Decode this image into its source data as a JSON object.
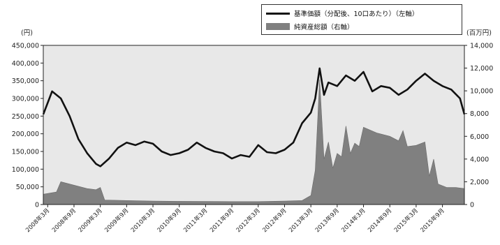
{
  "chart_data": {
    "type": "line",
    "legend": {
      "position": "top-right",
      "entries": [
        {
          "label": "基準価額（分配後、10口あたり）（左軸）",
          "kind": "line",
          "color": "#111111"
        },
        {
          "label": "純資産総額（右軸）",
          "kind": "area",
          "color": "#808080"
        }
      ]
    },
    "left_axis": {
      "unit": "(円)",
      "ylim": [
        0,
        450000
      ],
      "ticks": [
        "0",
        "50,000",
        "100,000",
        "150,000",
        "200,000",
        "250,000",
        "300,000",
        "350,000",
        "400,000",
        "450,000"
      ]
    },
    "right_axis": {
      "unit": "(百万円)",
      "ylim": [
        0,
        14000
      ],
      "ticks": [
        "0",
        "2,000",
        "4,000",
        "6,000",
        "8,000",
        "10,000",
        "12,000",
        "14,000"
      ]
    },
    "x_ticks": [
      {
        "label": "2008年3月",
        "date": "2008-03"
      },
      {
        "label": "2008年9月",
        "date": "2008-09"
      },
      {
        "label": "2009年3月",
        "date": "2009-03"
      },
      {
        "label": "2009年9月",
        "date": "2009-09"
      },
      {
        "label": "2010年3月",
        "date": "2010-03"
      },
      {
        "label": "2010年9月",
        "date": "2010-09"
      },
      {
        "label": "2011年3月",
        "date": "2011-03"
      },
      {
        "label": "2011年9月",
        "date": "2011-09"
      },
      {
        "label": "2012年3月",
        "date": "2012-03"
      },
      {
        "label": "2012年9月",
        "date": "2012-09"
      },
      {
        "label": "2013年3月",
        "date": "2013-03"
      },
      {
        "label": "2013年9月",
        "date": "2013-09"
      },
      {
        "label": "2014年3月",
        "date": "2014-03"
      },
      {
        "label": "2014年9月",
        "date": "2014-09"
      },
      {
        "label": "2015年3月",
        "date": "2015-03"
      },
      {
        "label": "2015年9月",
        "date": "2015-09"
      }
    ],
    "x_range": [
      "2008-02",
      "2016-02"
    ],
    "grid": false,
    "series": [
      {
        "name": "基準価額（分配後、10口あたり）（左軸）",
        "axis": "left",
        "type": "line",
        "points": [
          [
            "2008-02",
            255000
          ],
          [
            "2008-04",
            320000
          ],
          [
            "2008-06",
            300000
          ],
          [
            "2008-08",
            250000
          ],
          [
            "2008-10",
            185000
          ],
          [
            "2008-12",
            145000
          ],
          [
            "2009-02",
            115000
          ],
          [
            "2009-03",
            108000
          ],
          [
            "2009-05",
            130000
          ],
          [
            "2009-07",
            160000
          ],
          [
            "2009-09",
            175000
          ],
          [
            "2009-11",
            168000
          ],
          [
            "2010-01",
            178000
          ],
          [
            "2010-03",
            172000
          ],
          [
            "2010-05",
            150000
          ],
          [
            "2010-07",
            140000
          ],
          [
            "2010-09",
            145000
          ],
          [
            "2010-11",
            155000
          ],
          [
            "2011-01",
            175000
          ],
          [
            "2011-03",
            160000
          ],
          [
            "2011-05",
            150000
          ],
          [
            "2011-07",
            145000
          ],
          [
            "2011-09",
            130000
          ],
          [
            "2011-11",
            140000
          ],
          [
            "2012-01",
            135000
          ],
          [
            "2012-03",
            168000
          ],
          [
            "2012-05",
            148000
          ],
          [
            "2012-07",
            145000
          ],
          [
            "2012-09",
            155000
          ],
          [
            "2012-11",
            175000
          ],
          [
            "2013-01",
            230000
          ],
          [
            "2013-03",
            260000
          ],
          [
            "2013-04",
            300000
          ],
          [
            "2013-05",
            385000
          ],
          [
            "2013-06",
            310000
          ],
          [
            "2013-07",
            345000
          ],
          [
            "2013-09",
            335000
          ],
          [
            "2013-11",
            365000
          ],
          [
            "2014-01",
            350000
          ],
          [
            "2014-03",
            375000
          ],
          [
            "2014-05",
            320000
          ],
          [
            "2014-07",
            335000
          ],
          [
            "2014-09",
            330000
          ],
          [
            "2014-11",
            310000
          ],
          [
            "2015-01",
            325000
          ],
          [
            "2015-03",
            350000
          ],
          [
            "2015-05",
            370000
          ],
          [
            "2015-07",
            350000
          ],
          [
            "2015-09",
            335000
          ],
          [
            "2015-11",
            325000
          ],
          [
            "2016-01",
            300000
          ],
          [
            "2016-02",
            255000
          ]
        ]
      },
      {
        "name": "純資産総額（右軸）",
        "axis": "right",
        "type": "area",
        "points": [
          [
            "2008-02",
            900
          ],
          [
            "2008-05",
            1100
          ],
          [
            "2008-06",
            2000
          ],
          [
            "2008-09",
            1700
          ],
          [
            "2008-12",
            1400
          ],
          [
            "2009-02",
            1300
          ],
          [
            "2009-03",
            1500
          ],
          [
            "2009-04",
            400
          ],
          [
            "2009-09",
            350
          ],
          [
            "2010-03",
            300
          ],
          [
            "2010-09",
            280
          ],
          [
            "2011-03",
            270
          ],
          [
            "2011-09",
            260
          ],
          [
            "2012-03",
            260
          ],
          [
            "2012-09",
            300
          ],
          [
            "2013-01",
            350
          ],
          [
            "2013-03",
            800
          ],
          [
            "2013-04",
            3000
          ],
          [
            "2013-05",
            11000
          ],
          [
            "2013-06",
            4000
          ],
          [
            "2013-07",
            5500
          ],
          [
            "2013-08",
            3200
          ],
          [
            "2013-09",
            4500
          ],
          [
            "2013-10",
            4200
          ],
          [
            "2013-11",
            6900
          ],
          [
            "2013-12",
            4500
          ],
          [
            "2014-01",
            5400
          ],
          [
            "2014-02",
            5100
          ],
          [
            "2014-03",
            6800
          ],
          [
            "2014-06",
            6300
          ],
          [
            "2014-09",
            6000
          ],
          [
            "2014-11",
            5600
          ],
          [
            "2014-12",
            6500
          ],
          [
            "2015-01",
            5100
          ],
          [
            "2015-03",
            5200
          ],
          [
            "2015-05",
            5500
          ],
          [
            "2015-06",
            2500
          ],
          [
            "2015-07",
            4000
          ],
          [
            "2015-08",
            1800
          ],
          [
            "2015-10",
            1500
          ],
          [
            "2015-12",
            1500
          ],
          [
            "2016-02",
            1400
          ]
        ]
      }
    ]
  }
}
